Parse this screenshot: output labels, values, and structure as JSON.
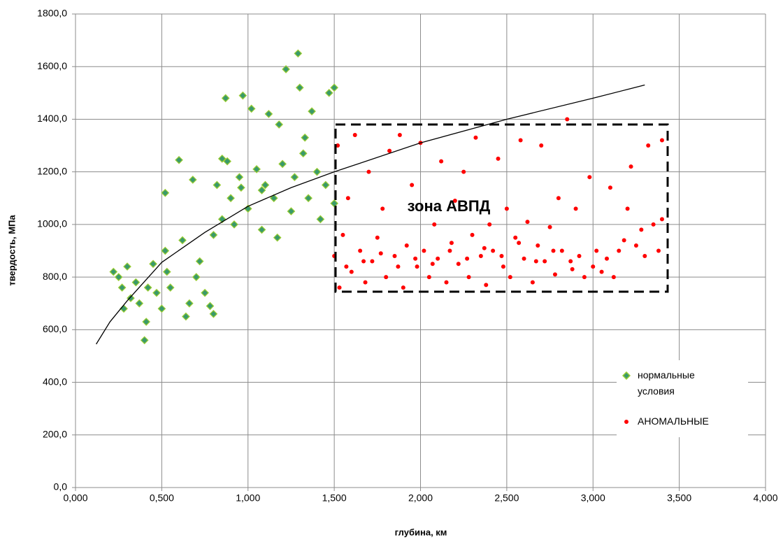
{
  "chart_data": {
    "type": "scatter",
    "x_label": "глубина, км",
    "y_label": "твердость, МПа",
    "annotation": "зона АВПД",
    "xlim": [
      0,
      4
    ],
    "ylim": [
      0,
      1800
    ],
    "grid": true,
    "xticks": [
      {
        "value": 0,
        "label": "0,000"
      },
      {
        "value": 0.5,
        "label": "0,500"
      },
      {
        "value": 1,
        "label": "1,000"
      },
      {
        "value": 1.5,
        "label": "1,500"
      },
      {
        "value": 2,
        "label": "2,000"
      },
      {
        "value": 2.5,
        "label": "2,500"
      },
      {
        "value": 3,
        "label": "3,000"
      },
      {
        "value": 3.5,
        "label": "3,500"
      },
      {
        "value": 4,
        "label": "4,000"
      }
    ],
    "yticks": [
      {
        "value": 0,
        "label": "0,0"
      },
      {
        "value": 200,
        "label": "200,0"
      },
      {
        "value": 400,
        "label": "400,0"
      },
      {
        "value": 600,
        "label": "600,0"
      },
      {
        "value": 800,
        "label": "800,0"
      },
      {
        "value": 1000,
        "label": "1000,0"
      },
      {
        "value": 1200,
        "label": "1200,0"
      },
      {
        "value": 1400,
        "label": "1400,0"
      },
      {
        "value": 1600,
        "label": "1600,0"
      },
      {
        "value": 1800,
        "label": "1800,0"
      }
    ],
    "legend": "right",
    "series": [
      {
        "name": "нормальные условия",
        "color": "#3a9a6a",
        "marker": "diamond",
        "x": [
          0.22,
          0.25,
          0.27,
          0.28,
          0.3,
          0.32,
          0.35,
          0.37,
          0.4,
          0.41,
          0.42,
          0.45,
          0.47,
          0.5,
          0.52,
          0.53,
          0.55,
          0.6,
          0.62,
          0.64,
          0.66,
          0.68,
          0.7,
          0.72,
          0.75,
          0.78,
          0.8,
          0.8,
          0.82,
          0.85,
          0.87,
          0.88,
          0.9,
          0.92,
          0.95,
          0.97,
          1.0,
          1.02,
          1.05,
          1.08,
          1.1,
          1.12,
          1.15,
          1.17,
          1.2,
          1.22,
          1.25,
          1.27,
          1.29,
          1.3,
          1.32,
          1.35,
          1.37,
          1.4,
          1.42,
          1.45,
          1.47,
          1.5,
          1.5,
          0.52,
          1.33,
          1.08,
          0.96,
          1.18,
          0.85
        ],
        "values": [
          820,
          800,
          760,
          680,
          840,
          720,
          780,
          700,
          560,
          630,
          760,
          850,
          740,
          680,
          900,
          820,
          760,
          1245,
          940,
          650,
          700,
          1170,
          800,
          860,
          740,
          690,
          960,
          660,
          1150,
          1020,
          1480,
          1240,
          1100,
          1000,
          1180,
          1490,
          1060,
          1440,
          1210,
          980,
          1150,
          1420,
          1100,
          950,
          1230,
          1590,
          1050,
          1180,
          1650,
          1520,
          1270,
          1100,
          1430,
          1200,
          1020,
          1150,
          1500,
          1520,
          1080,
          1120,
          1330,
          1130,
          1140,
          1380,
          1250
        ]
      },
      {
        "name": "АНОМАЛЬНЫЕ",
        "color": "#ff0000",
        "marker": "circle",
        "x": [
          1.5,
          1.52,
          1.53,
          1.55,
          1.58,
          1.6,
          1.62,
          1.65,
          1.68,
          1.7,
          1.72,
          1.75,
          1.78,
          1.8,
          1.82,
          1.85,
          1.88,
          1.9,
          1.92,
          1.95,
          1.98,
          2.0,
          2.02,
          2.05,
          2.08,
          2.1,
          2.12,
          2.15,
          2.18,
          2.2,
          2.22,
          2.25,
          2.28,
          2.3,
          2.32,
          2.35,
          2.38,
          2.4,
          2.42,
          2.45,
          2.48,
          2.5,
          2.52,
          2.55,
          2.58,
          2.6,
          2.62,
          2.65,
          2.68,
          2.7,
          2.72,
          2.75,
          2.78,
          2.8,
          2.82,
          2.85,
          2.88,
          2.9,
          2.92,
          2.95,
          2.98,
          3.0,
          3.02,
          3.05,
          3.08,
          3.1,
          3.12,
          3.15,
          3.18,
          3.2,
          3.22,
          3.25,
          3.28,
          3.3,
          3.32,
          3.35,
          3.38,
          3.4,
          3.4,
          1.57,
          1.67,
          1.77,
          1.87,
          1.97,
          2.07,
          2.17,
          2.27,
          2.37,
          2.47,
          2.57,
          2.67,
          2.77,
          2.87
        ],
        "values": [
          880,
          1300,
          760,
          960,
          1100,
          820,
          1340,
          900,
          780,
          1200,
          860,
          950,
          1060,
          800,
          1280,
          880,
          1340,
          760,
          920,
          1150,
          840,
          1310,
          900,
          800,
          1000,
          870,
          1240,
          780,
          930,
          1090,
          850,
          1200,
          800,
          960,
          1330,
          880,
          770,
          1000,
          900,
          1250,
          840,
          1060,
          800,
          950,
          1320,
          870,
          1010,
          780,
          920,
          1300,
          860,
          990,
          810,
          1100,
          900,
          1400,
          830,
          1060,
          880,
          800,
          1180,
          840,
          900,
          820,
          870,
          1140,
          800,
          900,
          940,
          1060,
          1220,
          920,
          980,
          880,
          1300,
          1000,
          900,
          1320,
          1020,
          840,
          860,
          890,
          840,
          870,
          850,
          900,
          870,
          910,
          880,
          930,
          860,
          900,
          860
        ]
      }
    ],
    "trendline": {
      "color": "#000000",
      "x": [
        0.12,
        0.2,
        0.3,
        0.5,
        0.75,
        1.0,
        1.25,
        1.5,
        2.0,
        2.5,
        3.0,
        3.3
      ],
      "values": [
        545,
        630,
        710,
        856,
        970,
        1069,
        1140,
        1200,
        1310,
        1400,
        1480,
        1530
      ]
    }
  }
}
